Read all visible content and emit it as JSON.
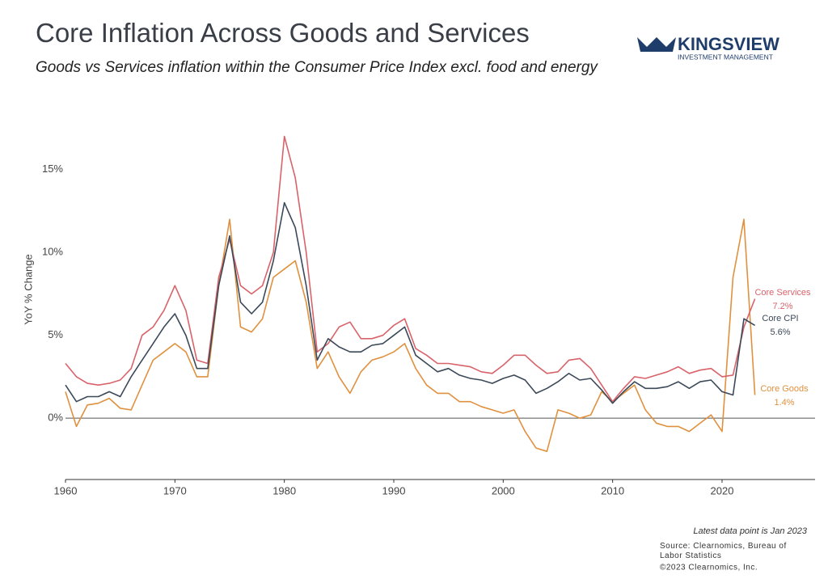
{
  "logo": {
    "name": "KINGSVIEW",
    "tagline": "INVESTMENT MANAGEMENT"
  },
  "chart_data": {
    "type": "line",
    "title": "Core Inflation Across Goods and Services",
    "subtitle": "Goods vs Services inflation within the Consumer Price Index excl. food and energy",
    "y_label": "YoY % Change",
    "note": "Latest data point is Jan 2023",
    "source": "Source: Clearnomics, Bureau of Labor Statistics",
    "copyright": "©2023 Clearnomics, Inc.",
    "x": [
      1960,
      1961,
      1962,
      1963,
      1964,
      1965,
      1966,
      1967,
      1968,
      1969,
      1970,
      1971,
      1972,
      1973,
      1974,
      1975,
      1976,
      1977,
      1978,
      1979,
      1980,
      1981,
      1982,
      1983,
      1984,
      1985,
      1986,
      1987,
      1988,
      1989,
      1990,
      1991,
      1992,
      1993,
      1994,
      1995,
      1996,
      1997,
      1998,
      1999,
      2000,
      2001,
      2002,
      2003,
      2004,
      2005,
      2006,
      2007,
      2008,
      2009,
      2010,
      2011,
      2012,
      2013,
      2014,
      2015,
      2016,
      2017,
      2018,
      2019,
      2020,
      2021,
      2022,
      2023
    ],
    "xlim": [
      1960,
      2028.5
    ],
    "xticks": [
      1960,
      1970,
      1980,
      1990,
      2000,
      2010,
      2020
    ],
    "ylim": [
      -3.7,
      18.5
    ],
    "yticks": [
      {
        "value": 0,
        "label": "0%"
      },
      {
        "value": 5,
        "label": "5%"
      },
      {
        "value": 10,
        "label": "10%"
      },
      {
        "value": 15,
        "label": "15%"
      }
    ],
    "zero_line": true,
    "series": [
      {
        "name": "Core Services",
        "color": "#d9636a",
        "values": [
          3.3,
          2.5,
          2.1,
          2.0,
          2.1,
          2.3,
          3.0,
          5.0,
          5.5,
          6.5,
          8.0,
          6.5,
          3.5,
          3.3,
          8.5,
          10.8,
          8.0,
          7.5,
          8.0,
          10.0,
          17.0,
          14.5,
          10.0,
          4.0,
          4.5,
          5.5,
          5.8,
          4.8,
          4.8,
          5.0,
          5.6,
          6.0,
          4.2,
          3.8,
          3.3,
          3.3,
          3.2,
          3.1,
          2.8,
          2.7,
          3.2,
          3.8,
          3.8,
          3.2,
          2.7,
          2.8,
          3.5,
          3.6,
          3.0,
          2.0,
          1.0,
          1.8,
          2.5,
          2.4,
          2.6,
          2.8,
          3.1,
          2.7,
          2.9,
          3.0,
          2.5,
          2.6,
          5.5,
          7.2
        ],
        "value_labels": [
          null,
          null,
          null,
          null,
          null,
          null,
          null,
          null,
          null,
          null,
          null,
          null,
          null,
          null,
          null,
          null,
          null,
          null,
          null,
          null,
          null,
          null,
          null,
          null,
          null,
          null,
          null,
          null,
          null,
          null,
          null,
          null,
          null,
          null,
          null,
          null,
          null,
          null,
          null,
          null,
          null,
          null,
          null,
          null,
          null,
          null,
          null,
          null,
          null,
          null,
          null,
          null,
          null,
          null,
          null,
          null,
          null,
          null,
          null,
          null,
          null,
          null,
          null,
          "7.2%"
        ]
      },
      {
        "name": "Core CPI",
        "color": "#3c4959",
        "values": [
          2.0,
          1.0,
          1.3,
          1.3,
          1.6,
          1.3,
          2.5,
          3.5,
          4.5,
          5.5,
          6.3,
          5.0,
          3.0,
          3.0,
          8.0,
          11.0,
          7.0,
          6.3,
          7.0,
          9.5,
          13.0,
          11.5,
          8.0,
          3.5,
          4.8,
          4.3,
          4.0,
          4.0,
          4.4,
          4.5,
          5.0,
          5.5,
          3.8,
          3.3,
          2.8,
          3.0,
          2.6,
          2.4,
          2.3,
          2.1,
          2.4,
          2.6,
          2.3,
          1.5,
          1.8,
          2.2,
          2.7,
          2.3,
          2.4,
          1.7,
          0.9,
          1.6,
          2.2,
          1.8,
          1.8,
          1.9,
          2.2,
          1.8,
          2.2,
          2.3,
          1.6,
          1.4,
          6.0,
          5.6
        ],
        "value_labels": [
          null,
          null,
          null,
          null,
          null,
          null,
          null,
          null,
          null,
          null,
          null,
          null,
          null,
          null,
          null,
          null,
          null,
          null,
          null,
          null,
          null,
          null,
          null,
          null,
          null,
          null,
          null,
          null,
          null,
          null,
          null,
          null,
          null,
          null,
          null,
          null,
          null,
          null,
          null,
          null,
          null,
          null,
          null,
          null,
          null,
          null,
          null,
          null,
          null,
          null,
          null,
          null,
          null,
          null,
          null,
          null,
          null,
          null,
          null,
          null,
          null,
          null,
          null,
          "5.6%"
        ]
      },
      {
        "name": "Core Goods",
        "color": "#e0913f",
        "values": [
          1.6,
          -0.5,
          0.8,
          0.9,
          1.2,
          0.6,
          0.5,
          2.0,
          3.5,
          4.0,
          4.5,
          4.0,
          2.5,
          2.5,
          8.0,
          12.0,
          5.5,
          5.2,
          6.0,
          8.5,
          9.0,
          9.5,
          7.0,
          3.0,
          4.0,
          2.5,
          1.5,
          2.8,
          3.5,
          3.7,
          4.0,
          4.5,
          3.0,
          2.0,
          1.5,
          1.5,
          1.0,
          1.0,
          0.7,
          0.5,
          0.3,
          0.5,
          -0.8,
          -1.8,
          -2.0,
          0.5,
          0.3,
          0.0,
          0.2,
          1.6,
          1.0,
          1.5,
          2.0,
          0.5,
          -0.3,
          -0.5,
          -0.5,
          -0.8,
          -0.3,
          0.2,
          -0.8,
          8.5,
          12.0,
          1.4
        ],
        "value_labels": [
          null,
          null,
          null,
          null,
          null,
          null,
          null,
          null,
          null,
          null,
          null,
          null,
          null,
          null,
          null,
          null,
          null,
          null,
          null,
          null,
          null,
          null,
          null,
          null,
          null,
          null,
          null,
          null,
          null,
          null,
          null,
          null,
          null,
          null,
          null,
          null,
          null,
          null,
          null,
          null,
          null,
          null,
          null,
          null,
          null,
          null,
          null,
          null,
          null,
          null,
          null,
          null,
          null,
          null,
          null,
          null,
          null,
          null,
          null,
          null,
          null,
          null,
          null,
          "1.4%"
        ]
      }
    ]
  }
}
